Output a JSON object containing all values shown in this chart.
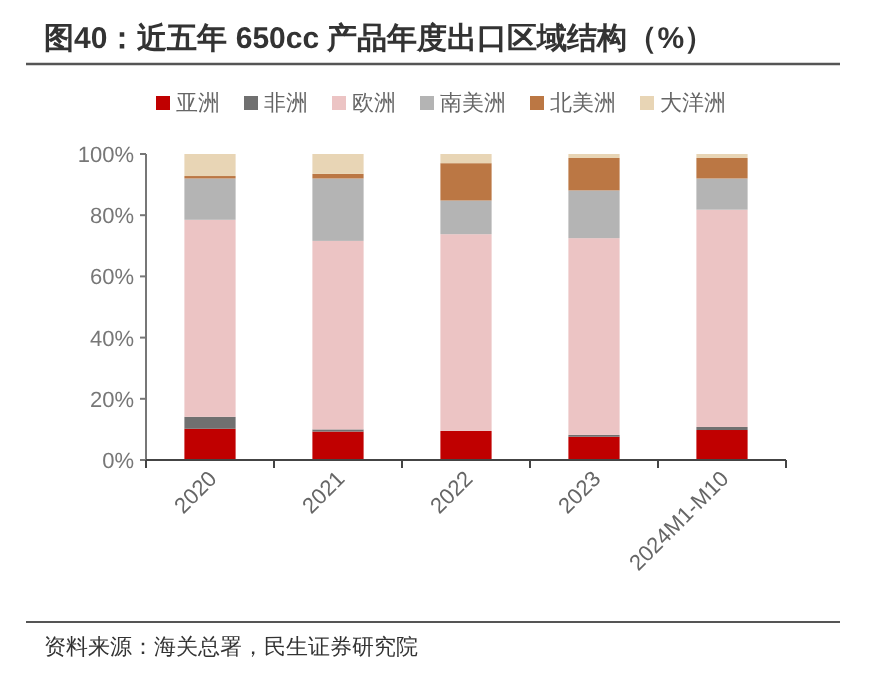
{
  "chart_data": {
    "type": "bar",
    "stacked": true,
    "title": "图40：近五年 650cc 产品年度出口区域结构（%）",
    "categories": [
      "2020",
      "2021",
      "2022",
      "2023",
      "2024M1-M10"
    ],
    "series": [
      {
        "name": "亚洲",
        "color": "#c00000",
        "values": [
          10.2,
          9.3,
          9.5,
          7.6,
          9.8
        ]
      },
      {
        "name": "非洲",
        "color": "#707070",
        "values": [
          3.9,
          0.7,
          null,
          0.6,
          1.0
        ]
      },
      {
        "name": "欧洲",
        "color": "#ecc4c4",
        "values": [
          64.4,
          61.6,
          64.3,
          64.3,
          71.0
        ]
      },
      {
        "name": "南美洲",
        "color": "#b4b4b4",
        "values": [
          13.5,
          20.4,
          11.0,
          15.6,
          10.2
        ]
      },
      {
        "name": "北美洲",
        "color": "#bb7744",
        "values": [
          0.8,
          1.5,
          12.2,
          10.6,
          6.7
        ]
      },
      {
        "name": "大洋洲",
        "color": "#e8d5b5",
        "values": [
          7.2,
          6.5,
          3.0,
          1.3,
          1.3
        ]
      }
    ],
    "ylim": [
      0,
      100
    ],
    "yticks": [
      {
        "value": 0,
        "label": "0%"
      },
      {
        "value": 20,
        "label": "20%"
      },
      {
        "value": 40,
        "label": "40%"
      },
      {
        "value": 60,
        "label": "60%"
      },
      {
        "value": 80,
        "label": "80%"
      },
      {
        "value": 100,
        "label": "100%"
      }
    ],
    "grid": false,
    "legend": "top",
    "annotations": [
      "资料来源：海关总署，民生证券研究院"
    ]
  }
}
